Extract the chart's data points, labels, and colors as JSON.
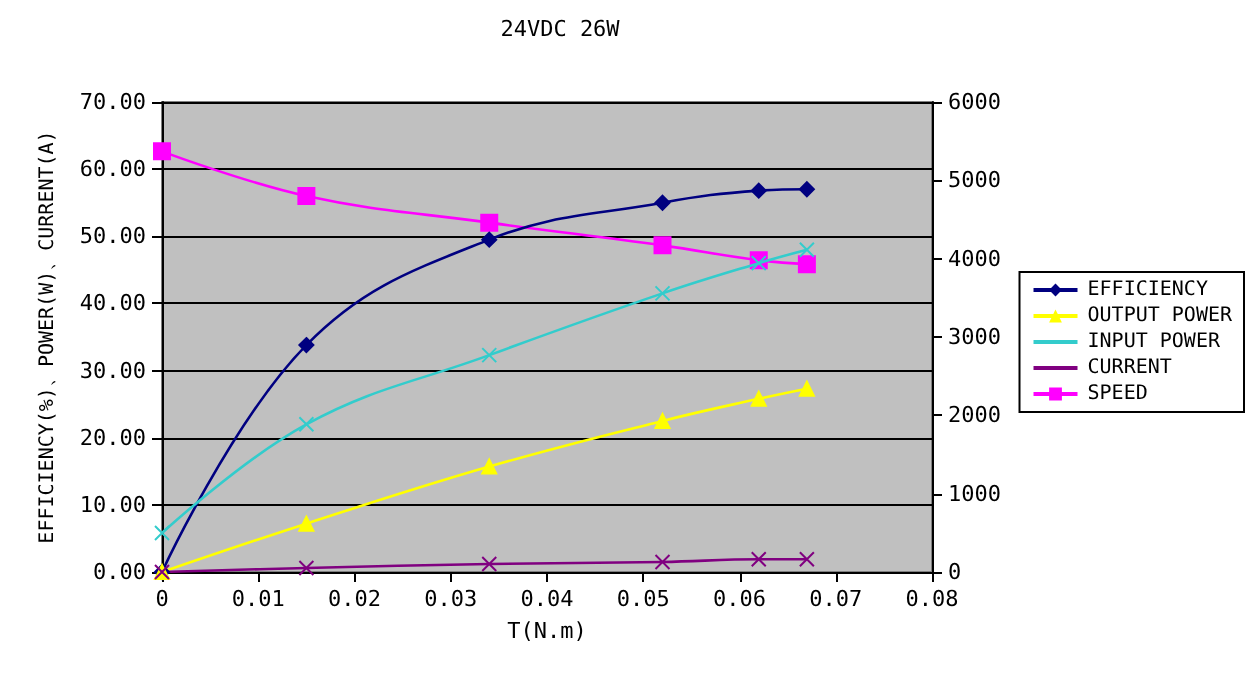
{
  "chart_data": {
    "type": "line",
    "title": "24VDC 26W",
    "xlabel": "T(N.m)",
    "ylabel": "EFFICIENCY(%)、POWER(W)、CURRENT(A)",
    "x": [
      0,
      0.015,
      0.034,
      0.052,
      0.062,
      0.067
    ],
    "series": [
      {
        "name": "EFFICIENCY",
        "color": "#000080",
        "marker": "diamond",
        "values": [
          0,
          33.8,
          49.5,
          55,
          56.8,
          57
        ]
      },
      {
        "name": "OUTPUT POWER",
        "color": "#ffff00",
        "marker": "triangle",
        "values": [
          0,
          7.2,
          15.7,
          22.5,
          25.8,
          27.3
        ]
      },
      {
        "name": "INPUT POWER",
        "color": "#33cccc",
        "marker": "cross",
        "values": [
          5.8,
          22,
          32.3,
          41.5,
          46,
          48
        ]
      },
      {
        "name": "CURRENT",
        "color": "#800080",
        "marker": "cross",
        "values": [
          0,
          0.6,
          1.2,
          1.5,
          1.9,
          1.9
        ]
      },
      {
        "name": "SPEED",
        "color": "#ff00ff",
        "marker": "square",
        "axis": "y2",
        "values": [
          5370,
          4800,
          4460,
          4170,
          3980,
          3930
        ]
      }
    ],
    "xlim": [
      0,
      0.08
    ],
    "xticks": [
      0,
      0.01,
      0.02,
      0.03,
      0.04,
      0.05,
      0.06,
      0.07,
      0.08
    ],
    "ylim": [
      0,
      70
    ],
    "yticks": [
      {
        "value": 0,
        "label": "0.00"
      },
      {
        "value": 10,
        "label": "10.00"
      },
      {
        "value": 20,
        "label": "20.00"
      },
      {
        "value": 30,
        "label": "30.00"
      },
      {
        "value": 40,
        "label": "40.00"
      },
      {
        "value": 50,
        "label": "50.00"
      },
      {
        "value": 60,
        "label": "60.00"
      },
      {
        "value": 70,
        "label": "70.00"
      }
    ],
    "y2lim": [
      0,
      6000
    ],
    "y2ticks": [
      0,
      1000,
      2000,
      3000,
      4000,
      5000,
      6000
    ],
    "grid": "y",
    "legend": "right",
    "line_style": "solid"
  }
}
